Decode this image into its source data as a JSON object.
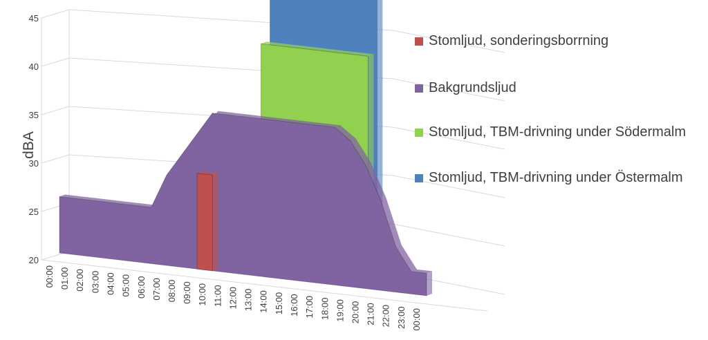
{
  "chart_data": {
    "type": "area",
    "title": "",
    "xlabel": "",
    "ylabel": "dBA",
    "ylim": [
      20,
      45
    ],
    "yticks": [
      "20",
      "25",
      "30",
      "35",
      "40",
      "45"
    ],
    "grid": true,
    "legend_position": "right",
    "categories": [
      "00:00",
      "01:00",
      "02:00",
      "03:00",
      "04:00",
      "05:00",
      "06:00",
      "07:00",
      "08:00",
      "09:00",
      "10:00",
      "11:00",
      "12:00",
      "13:00",
      "14:00",
      "15:00",
      "16:00",
      "17:00",
      "18:00",
      "19:00",
      "20:00",
      "21:00",
      "22:00",
      "23:00",
      "00:00"
    ],
    "series": [
      {
        "name": "Stomljud, sonderingsborrning",
        "color": "#c0504d",
        "values": [
          null,
          null,
          null,
          null,
          null,
          null,
          null,
          null,
          null,
          28.5,
          28.5,
          null,
          null,
          null,
          null,
          null,
          null,
          null,
          null,
          null,
          null,
          null,
          null,
          null,
          null
        ]
      },
      {
        "name": "Bakgrundsljud",
        "color": "#8064a2",
        "values": [
          25,
          25,
          25,
          25,
          25,
          25,
          25,
          28,
          30,
          32,
          34,
          34,
          34,
          34,
          34,
          34,
          34,
          34,
          34,
          33,
          31,
          28,
          24,
          22,
          22
        ]
      },
      {
        "name": "Stomljud, TBM-drivning under Södermalm",
        "color": "#92d050",
        "values": [
          null,
          null,
          null,
          null,
          null,
          null,
          null,
          null,
          null,
          null,
          null,
          null,
          39,
          39,
          39,
          39,
          39,
          39,
          39,
          39,
          null,
          null,
          null,
          null,
          null
        ]
      },
      {
        "name": "Stomljud, TBM-drivning under Östermalm",
        "color": "#4f81bd",
        "values": [
          null,
          null,
          null,
          null,
          null,
          null,
          null,
          null,
          null,
          null,
          null,
          null,
          44.5,
          44.5,
          44.5,
          44.5,
          44.5,
          44.5,
          44.5,
          44.5,
          null,
          null,
          null,
          null,
          null
        ]
      }
    ]
  }
}
